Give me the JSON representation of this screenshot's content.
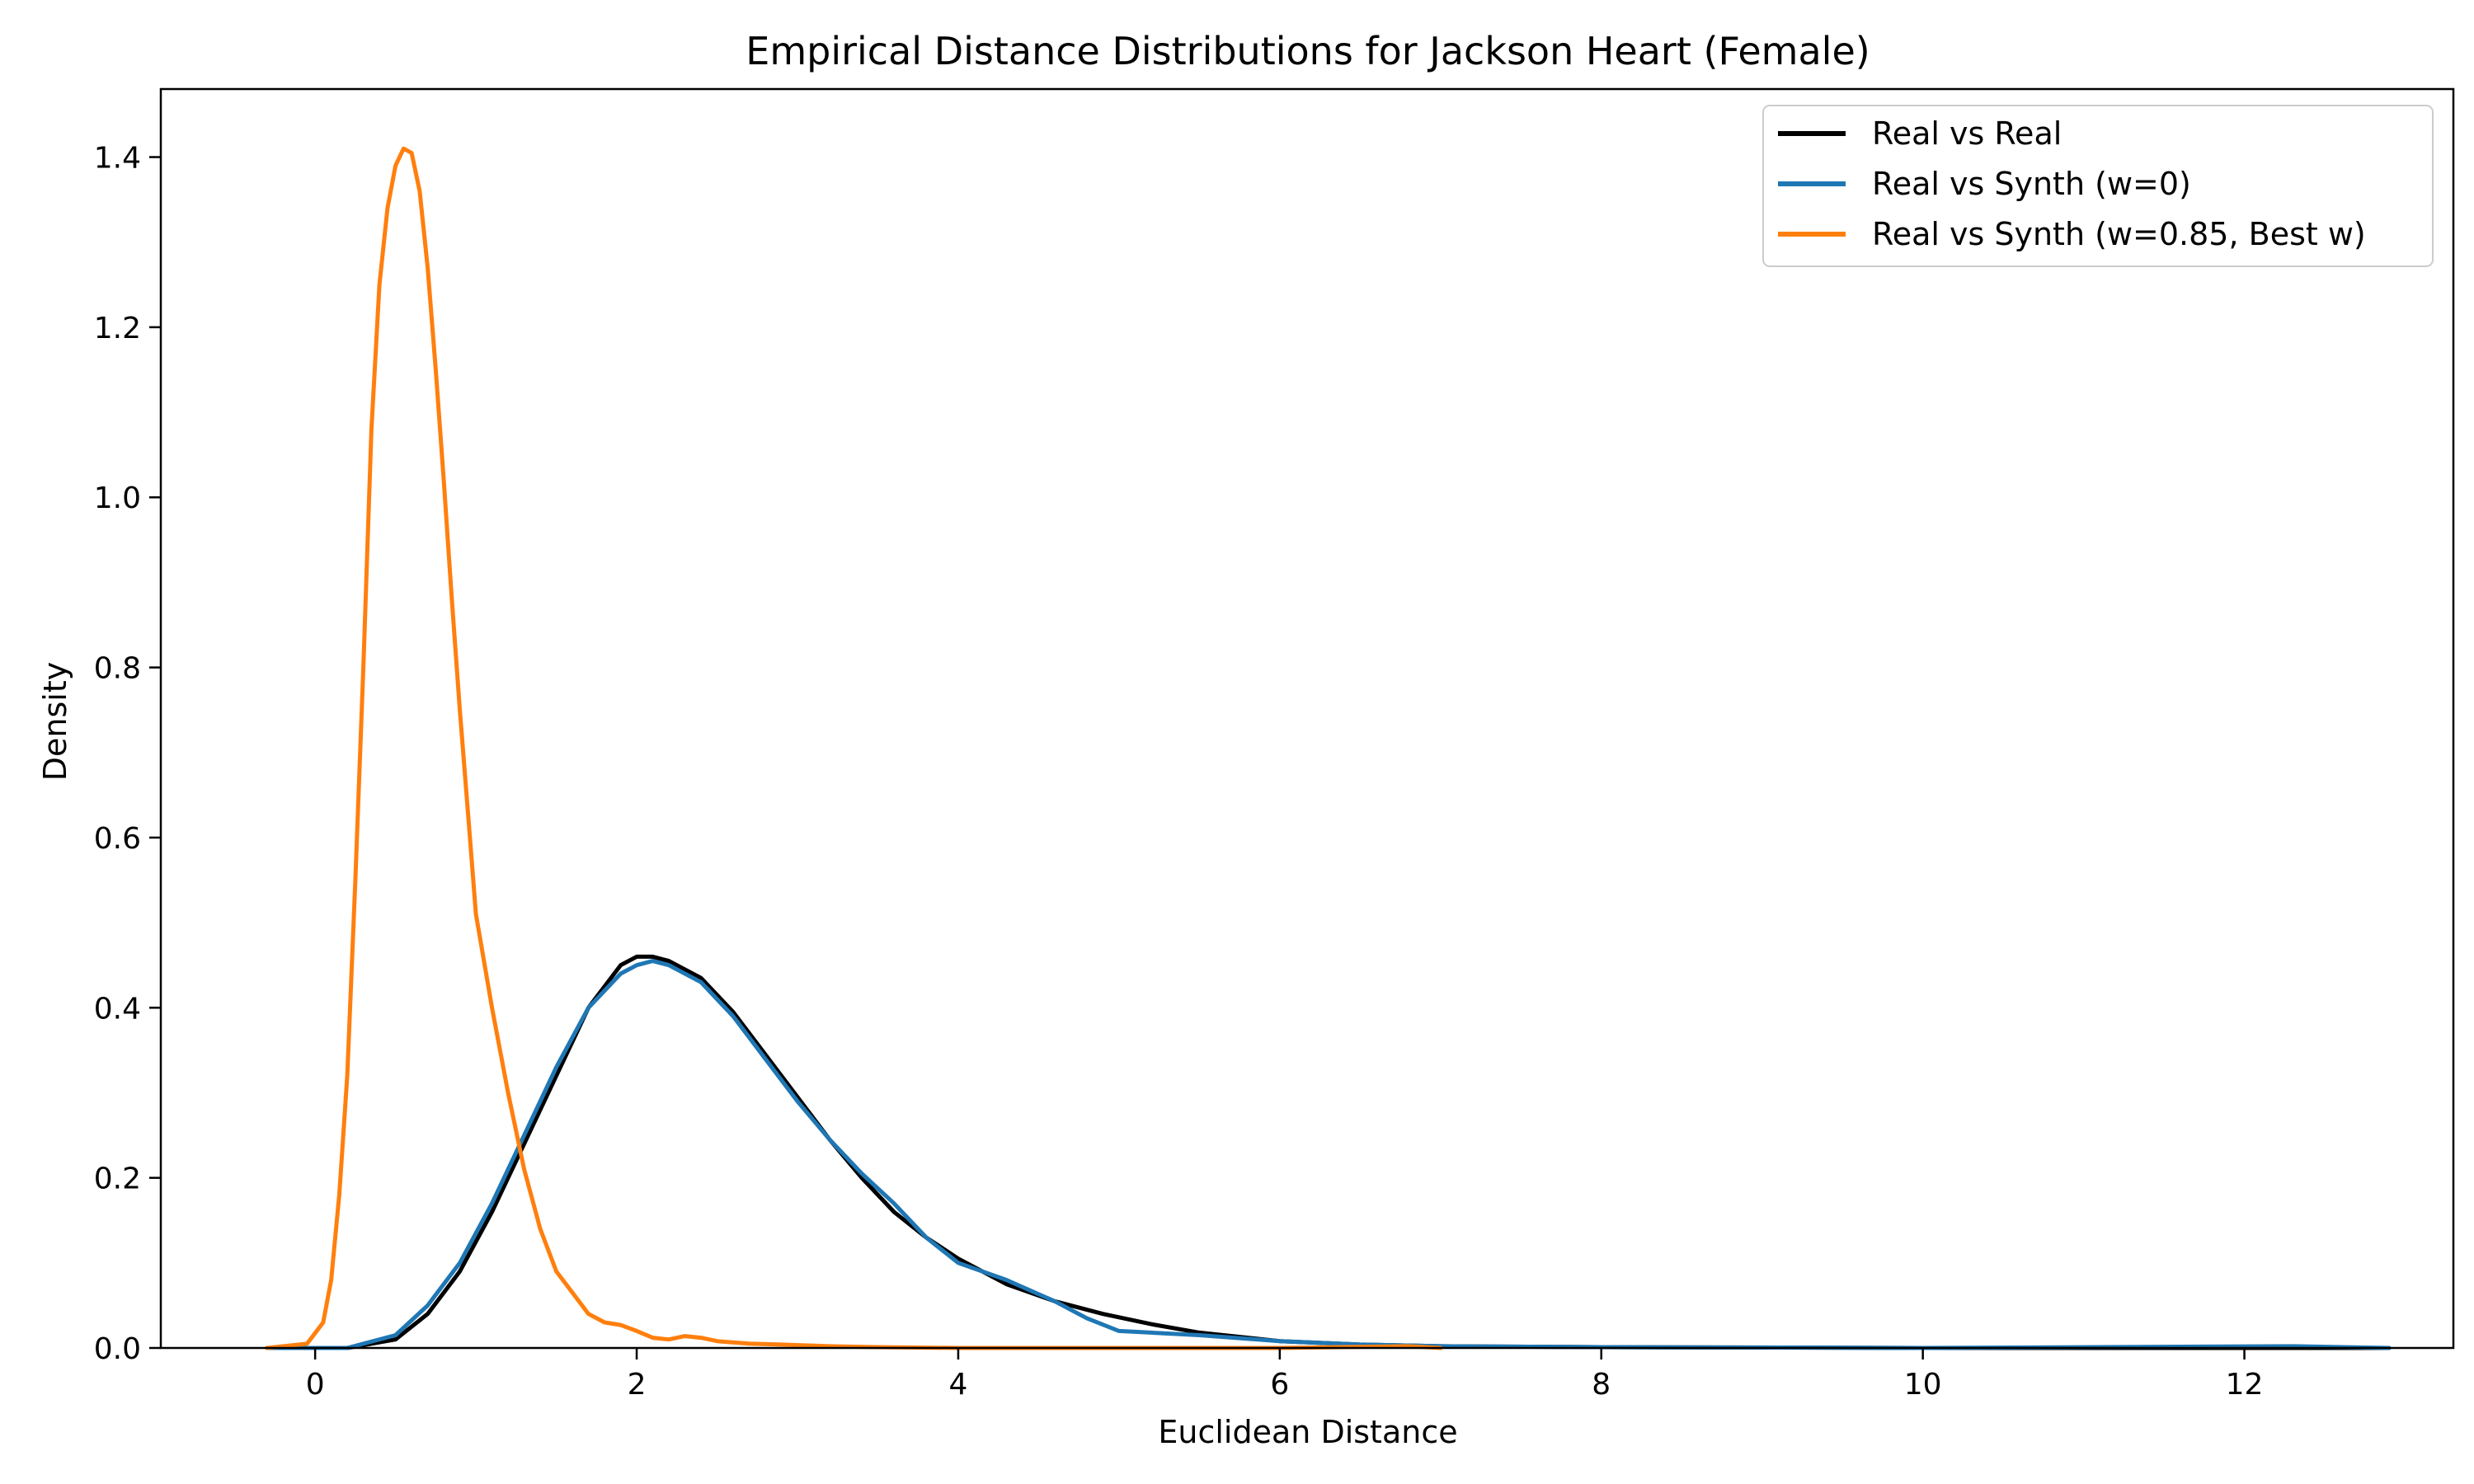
{
  "chart_data": {
    "type": "line",
    "title": "Empirical Distance Distributions for Jackson Heart (Female)",
    "xlabel": "Euclidean Distance",
    "ylabel": "Density",
    "xlim": [
      -0.96,
      13.3
    ],
    "ylim": [
      0,
      1.48
    ],
    "xticks": [
      0,
      2,
      4,
      6,
      8,
      10,
      12
    ],
    "xtick_labels": [
      "0",
      "2",
      "4",
      "6",
      "8",
      "10",
      "12"
    ],
    "yticks": [
      0,
      0.2,
      0.4,
      0.6,
      0.8,
      1.0,
      1.2,
      1.4
    ],
    "ytick_labels": [
      "0.0",
      "0.2",
      "0.4",
      "0.6",
      "0.8",
      "1.0",
      "1.2",
      "1.4"
    ],
    "grid": false,
    "legend_position": "top-right",
    "series": [
      {
        "name": "Real vs Real",
        "color": "#000000",
        "x": [
          0.2,
          0.5,
          0.7,
          0.9,
          1.1,
          1.3,
          1.5,
          1.7,
          1.9,
          2.0,
          2.1,
          2.2,
          2.4,
          2.6,
          2.8,
          3.0,
          3.2,
          3.4,
          3.6,
          3.8,
          4.0,
          4.3,
          4.6,
          4.9,
          5.2,
          5.5,
          6.0,
          6.5,
          7.0,
          8.0,
          10.0,
          12.0,
          12.9
        ],
        "y": [
          0.0,
          0.01,
          0.04,
          0.09,
          0.16,
          0.24,
          0.32,
          0.4,
          0.45,
          0.46,
          0.46,
          0.455,
          0.435,
          0.395,
          0.345,
          0.295,
          0.245,
          0.2,
          0.16,
          0.13,
          0.105,
          0.075,
          0.055,
          0.04,
          0.028,
          0.018,
          0.008,
          0.004,
          0.002,
          0.001,
          0.0,
          0.0,
          0.0
        ]
      },
      {
        "name": "Real vs Synth (w=0)",
        "color": "#1f77b4",
        "x": [
          -0.3,
          0.2,
          0.5,
          0.7,
          0.9,
          1.1,
          1.3,
          1.5,
          1.7,
          1.9,
          2.0,
          2.1,
          2.2,
          2.4,
          2.6,
          2.8,
          3.0,
          3.2,
          3.4,
          3.6,
          3.8,
          4.0,
          4.3,
          4.6,
          4.8,
          5.0,
          5.5,
          6.0,
          6.5,
          7.0,
          8.0,
          10.0,
          12.3,
          12.9
        ],
        "y": [
          0.0,
          0.0,
          0.015,
          0.05,
          0.1,
          0.17,
          0.25,
          0.33,
          0.4,
          0.44,
          0.45,
          0.455,
          0.45,
          0.43,
          0.39,
          0.34,
          0.29,
          0.245,
          0.205,
          0.17,
          0.13,
          0.1,
          0.08,
          0.055,
          0.035,
          0.02,
          0.015,
          0.008,
          0.004,
          0.002,
          0.001,
          0.0,
          0.002,
          0.0
        ]
      },
      {
        "name": "Real vs Synth (w=0.85, Best w)",
        "color": "#ff7f0e",
        "x": [
          -0.3,
          -0.05,
          0.05,
          0.1,
          0.15,
          0.2,
          0.25,
          0.3,
          0.35,
          0.4,
          0.45,
          0.5,
          0.55,
          0.6,
          0.65,
          0.7,
          0.75,
          0.8,
          0.85,
          0.9,
          0.95,
          1.0,
          1.1,
          1.2,
          1.3,
          1.4,
          1.5,
          1.6,
          1.7,
          1.8,
          1.9,
          2.0,
          2.1,
          2.2,
          2.3,
          2.4,
          2.5,
          2.7,
          2.9,
          3.2,
          3.5,
          4.0,
          5.0,
          6.0,
          6.8,
          7.0
        ],
        "y": [
          0.0,
          0.005,
          0.03,
          0.08,
          0.18,
          0.32,
          0.55,
          0.8,
          1.08,
          1.25,
          1.34,
          1.39,
          1.41,
          1.405,
          1.36,
          1.27,
          1.15,
          1.02,
          0.88,
          0.75,
          0.63,
          0.51,
          0.4,
          0.3,
          0.21,
          0.14,
          0.09,
          0.065,
          0.04,
          0.03,
          0.027,
          0.02,
          0.012,
          0.01,
          0.014,
          0.012,
          0.008,
          0.005,
          0.004,
          0.002,
          0.001,
          0.0,
          0.0,
          0.0,
          0.002,
          0.0
        ]
      }
    ]
  }
}
